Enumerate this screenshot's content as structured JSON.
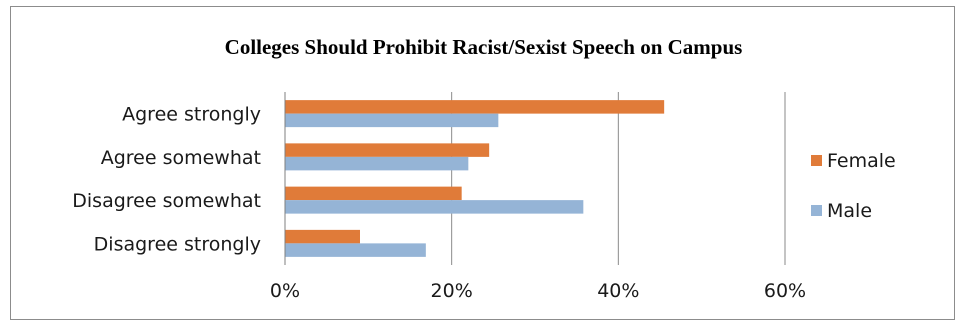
{
  "chart_data": {
    "type": "bar",
    "orientation": "horizontal",
    "title": "Colleges Should Prohibit Racist/Sexist Speech on Campus",
    "categories": [
      "Agree strongly",
      "Agree somewhat",
      "Disagree somewhat",
      "Disagree strongly"
    ],
    "series": [
      {
        "name": "Female",
        "color": "#e07b39",
        "values": [
          45.5,
          24.5,
          21.2,
          9.0
        ]
      },
      {
        "name": "Male",
        "color": "#95b4d6",
        "values": [
          25.6,
          22.0,
          35.8,
          16.9
        ]
      }
    ],
    "xlim": [
      0,
      60
    ],
    "xticks": [
      0,
      20,
      40,
      60
    ],
    "xtick_labels": [
      "0%",
      "20%",
      "40%",
      "60%"
    ],
    "grid": "vertical",
    "legend": "right",
    "colors": {
      "grid": "#8a8a8a",
      "axis": "#7f7f7f",
      "border": "#8c8c8c"
    }
  }
}
